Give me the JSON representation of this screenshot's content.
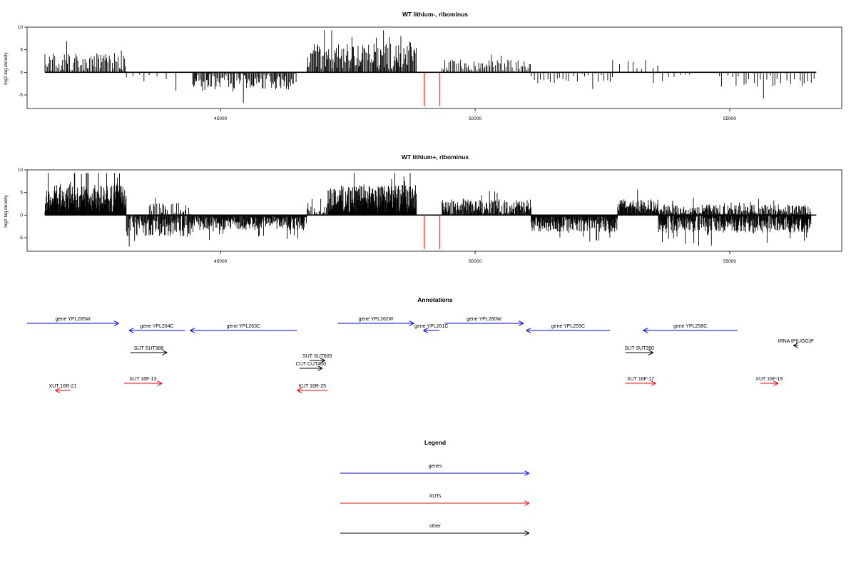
{
  "colors": {
    "black": "#000000",
    "gray": "#444444",
    "blue": "#0000ff",
    "red": "#ff0000"
  },
  "chart_data": [
    {
      "type": "bar",
      "title": "WT lithium-, ribominus",
      "ylabel": "log2 tag density",
      "xlim": [
        41200,
        57200
      ],
      "ylim": [
        -8,
        10
      ],
      "xticks": [
        45000,
        50000,
        55000
      ],
      "yticks": [
        10,
        5,
        0,
        -5
      ],
      "highlight_x": [
        49000,
        49300
      ],
      "highlight_color": "#ff0000",
      "segments": [
        {
          "from": 41550,
          "to": 43150,
          "sign": 1,
          "avg": 2.2,
          "var": 1.6,
          "step": 22
        },
        {
          "from": 43150,
          "to": 44200,
          "sign": -1,
          "avg": 1.5,
          "var": 1.2,
          "step": 140
        },
        {
          "from": 44450,
          "to": 46500,
          "sign": -1,
          "avg": 2.0,
          "var": 1.5,
          "step": 18
        },
        {
          "from": 46700,
          "to": 48850,
          "sign": 1,
          "avg": 3.4,
          "var": 2.2,
          "step": 16
        },
        {
          "from": 49350,
          "to": 51100,
          "sign": 1,
          "avg": 1.6,
          "var": 1.0,
          "step": 28
        },
        {
          "from": 51100,
          "to": 52700,
          "sign": -1,
          "avg": 1.3,
          "var": 1.0,
          "step": 70
        },
        {
          "from": 52700,
          "to": 53600,
          "sign": 1,
          "avg": 1.5,
          "var": 1.0,
          "step": 120
        },
        {
          "from": 53500,
          "to": 54300,
          "sign": -1,
          "avg": 1.0,
          "var": 0.8,
          "step": 130
        },
        {
          "from": 54800,
          "to": 56700,
          "sign": -1,
          "avg": 1.4,
          "var": 1.4,
          "step": 55
        }
      ]
    },
    {
      "type": "bar",
      "title": "WT lithium+, ribominus",
      "ylabel": "log2 tag density",
      "xlim": [
        41200,
        57200
      ],
      "ylim": [
        -8,
        10
      ],
      "xticks": [
        45000,
        50000,
        55000
      ],
      "yticks": [
        10,
        5,
        0,
        -5
      ],
      "highlight_x": [
        49000,
        49300
      ],
      "highlight_color": "#ff0000",
      "segments": [
        {
          "from": 41550,
          "to": 43150,
          "sign": 1,
          "avg": 3.6,
          "var": 2.4,
          "step": 7
        },
        {
          "from": 43150,
          "to": 44400,
          "sign": -1,
          "avg": 2.4,
          "var": 1.8,
          "step": 12
        },
        {
          "from": 43600,
          "to": 44400,
          "sign": 1,
          "avg": 1.3,
          "var": 1.1,
          "step": 20
        },
        {
          "from": 44400,
          "to": 46700,
          "sign": -1,
          "avg": 1.8,
          "var": 1.2,
          "step": 10
        },
        {
          "from": 46700,
          "to": 47100,
          "sign": 1,
          "avg": 1.0,
          "var": 0.8,
          "step": 20
        },
        {
          "from": 47100,
          "to": 48850,
          "sign": 1,
          "avg": 3.6,
          "var": 2.4,
          "step": 7
        },
        {
          "from": 49350,
          "to": 51100,
          "sign": 1,
          "avg": 1.8,
          "var": 1.3,
          "step": 11
        },
        {
          "from": 51100,
          "to": 52800,
          "sign": -1,
          "avg": 2.0,
          "var": 1.3,
          "step": 9
        },
        {
          "from": 52800,
          "to": 53600,
          "sign": 1,
          "avg": 2.0,
          "var": 1.2,
          "step": 10
        },
        {
          "from": 53600,
          "to": 56600,
          "sign": -1,
          "avg": 2.0,
          "var": 1.5,
          "step": 9
        },
        {
          "from": 53600,
          "to": 56600,
          "sign": 1,
          "avg": 1.2,
          "var": 0.9,
          "step": 14
        }
      ]
    }
  ],
  "annotations": {
    "title": "Annotations",
    "features": [
      {
        "label": "gene YPL265W",
        "start": 41200,
        "end": 43000,
        "strand": "+",
        "color": "#0000ff",
        "row": 0
      },
      {
        "label": "gene YPL264C",
        "start": 43200,
        "end": 44300,
        "strand": "-",
        "color": "#0000ff",
        "row": 1
      },
      {
        "label": "gene YPL263C",
        "start": 44400,
        "end": 46500,
        "strand": "-",
        "color": "#0000ff",
        "row": 1
      },
      {
        "label": "gene YPL262W",
        "start": 47300,
        "end": 48800,
        "strand": "+",
        "color": "#0000ff",
        "row": 0
      },
      {
        "label": "gene YPL261C",
        "start": 48980,
        "end": 49300,
        "strand": "-",
        "color": "#0000ff",
        "row": 1
      },
      {
        "label": "gene YPL260W",
        "start": 49400,
        "end": 50950,
        "strand": "+",
        "color": "#0000ff",
        "row": 0
      },
      {
        "label": "gene YPL259C",
        "start": 51000,
        "end": 52650,
        "strand": "-",
        "color": "#0000ff",
        "row": 1
      },
      {
        "label": "gene YPL258C",
        "start": 53300,
        "end": 55150,
        "strand": "-",
        "color": "#0000ff",
        "row": 1
      },
      {
        "label": "tRNA tP(UGG)P",
        "start": 56250,
        "end": 56350,
        "strand": "-",
        "color": "#000000",
        "row": 2
      },
      {
        "label": "SUT SUT388",
        "start": 43230,
        "end": 43950,
        "strand": "+",
        "color": "#000000",
        "row": 3
      },
      {
        "label": "SUT SUT605",
        "start": 46750,
        "end": 47050,
        "strand": "+",
        "color": "#000000",
        "row": 4
      },
      {
        "label": "CUT CUT400",
        "start": 46550,
        "end": 47000,
        "strand": "+",
        "color": "#000000",
        "row": 5
      },
      {
        "label": "SUT SUT390",
        "start": 52950,
        "end": 53500,
        "strand": "+",
        "color": "#000000",
        "row": 3
      },
      {
        "label": "XUT 16F-13",
        "start": 43100,
        "end": 43850,
        "strand": "+",
        "color": "#ff0000",
        "row": 6
      },
      {
        "label": "XUT 16R-21",
        "start": 41750,
        "end": 42050,
        "strand": "-",
        "color": "#ff0000",
        "row": 7
      },
      {
        "label": "XUT 16R-25",
        "start": 46500,
        "end": 47100,
        "strand": "-",
        "color": "#ff0000",
        "row": 7
      },
      {
        "label": "XUT 16F-17",
        "start": 52950,
        "end": 53550,
        "strand": "+",
        "color": "#ff0000",
        "row": 6
      },
      {
        "label": "XUT 16F-19",
        "start": 55600,
        "end": 55950,
        "strand": "+",
        "color": "#ff0000",
        "row": 6
      }
    ]
  },
  "legend": {
    "title": "Legend",
    "items": [
      {
        "label": "genes",
        "color": "#0000ff"
      },
      {
        "label": "XUTs",
        "color": "#ff0000"
      },
      {
        "label": "other",
        "color": "#000000"
      }
    ]
  }
}
